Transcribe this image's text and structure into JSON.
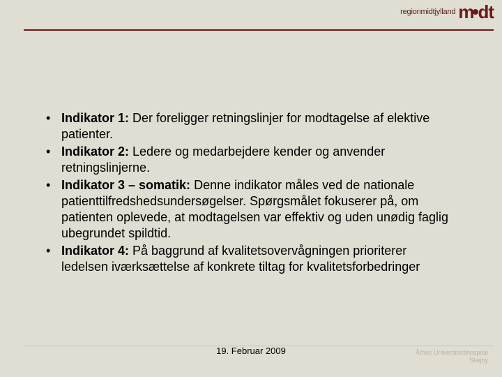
{
  "header": {
    "region_small": "regionmidtjylland",
    "logo_word": "midt"
  },
  "bullets": [
    {
      "label": "Indikator 1:",
      "text": " Der foreligger retningslinjer for modtagelse af elektive patienter."
    },
    {
      "label": "Indikator 2:",
      "text": " Ledere og medarbejdere kender og anvender retningslinjerne."
    },
    {
      "label": "Indikator 3 – somatik:",
      "text": " Denne indikator måles ved de nationale patienttilfredshedsundersøgelser. Spørgsmålet fokuserer på, om patienten oplevede, at modtagelsen var effektiv og uden unødig faglig ubegrundet spildtid."
    },
    {
      "label": "Indikator 4:",
      "text": " På baggrund af kvalitetsovervågningen prioriterer ledelsen iværksættelse af konkrete tiltag for kvalitetsforbedringer"
    }
  ],
  "footer": {
    "date": "19. Februar 2009",
    "right1": "Århus Universitetshospital",
    "right2": "Skejby"
  },
  "colors": {
    "background": "#e0ddd2",
    "accent": "#6a1919",
    "text": "#000000"
  }
}
